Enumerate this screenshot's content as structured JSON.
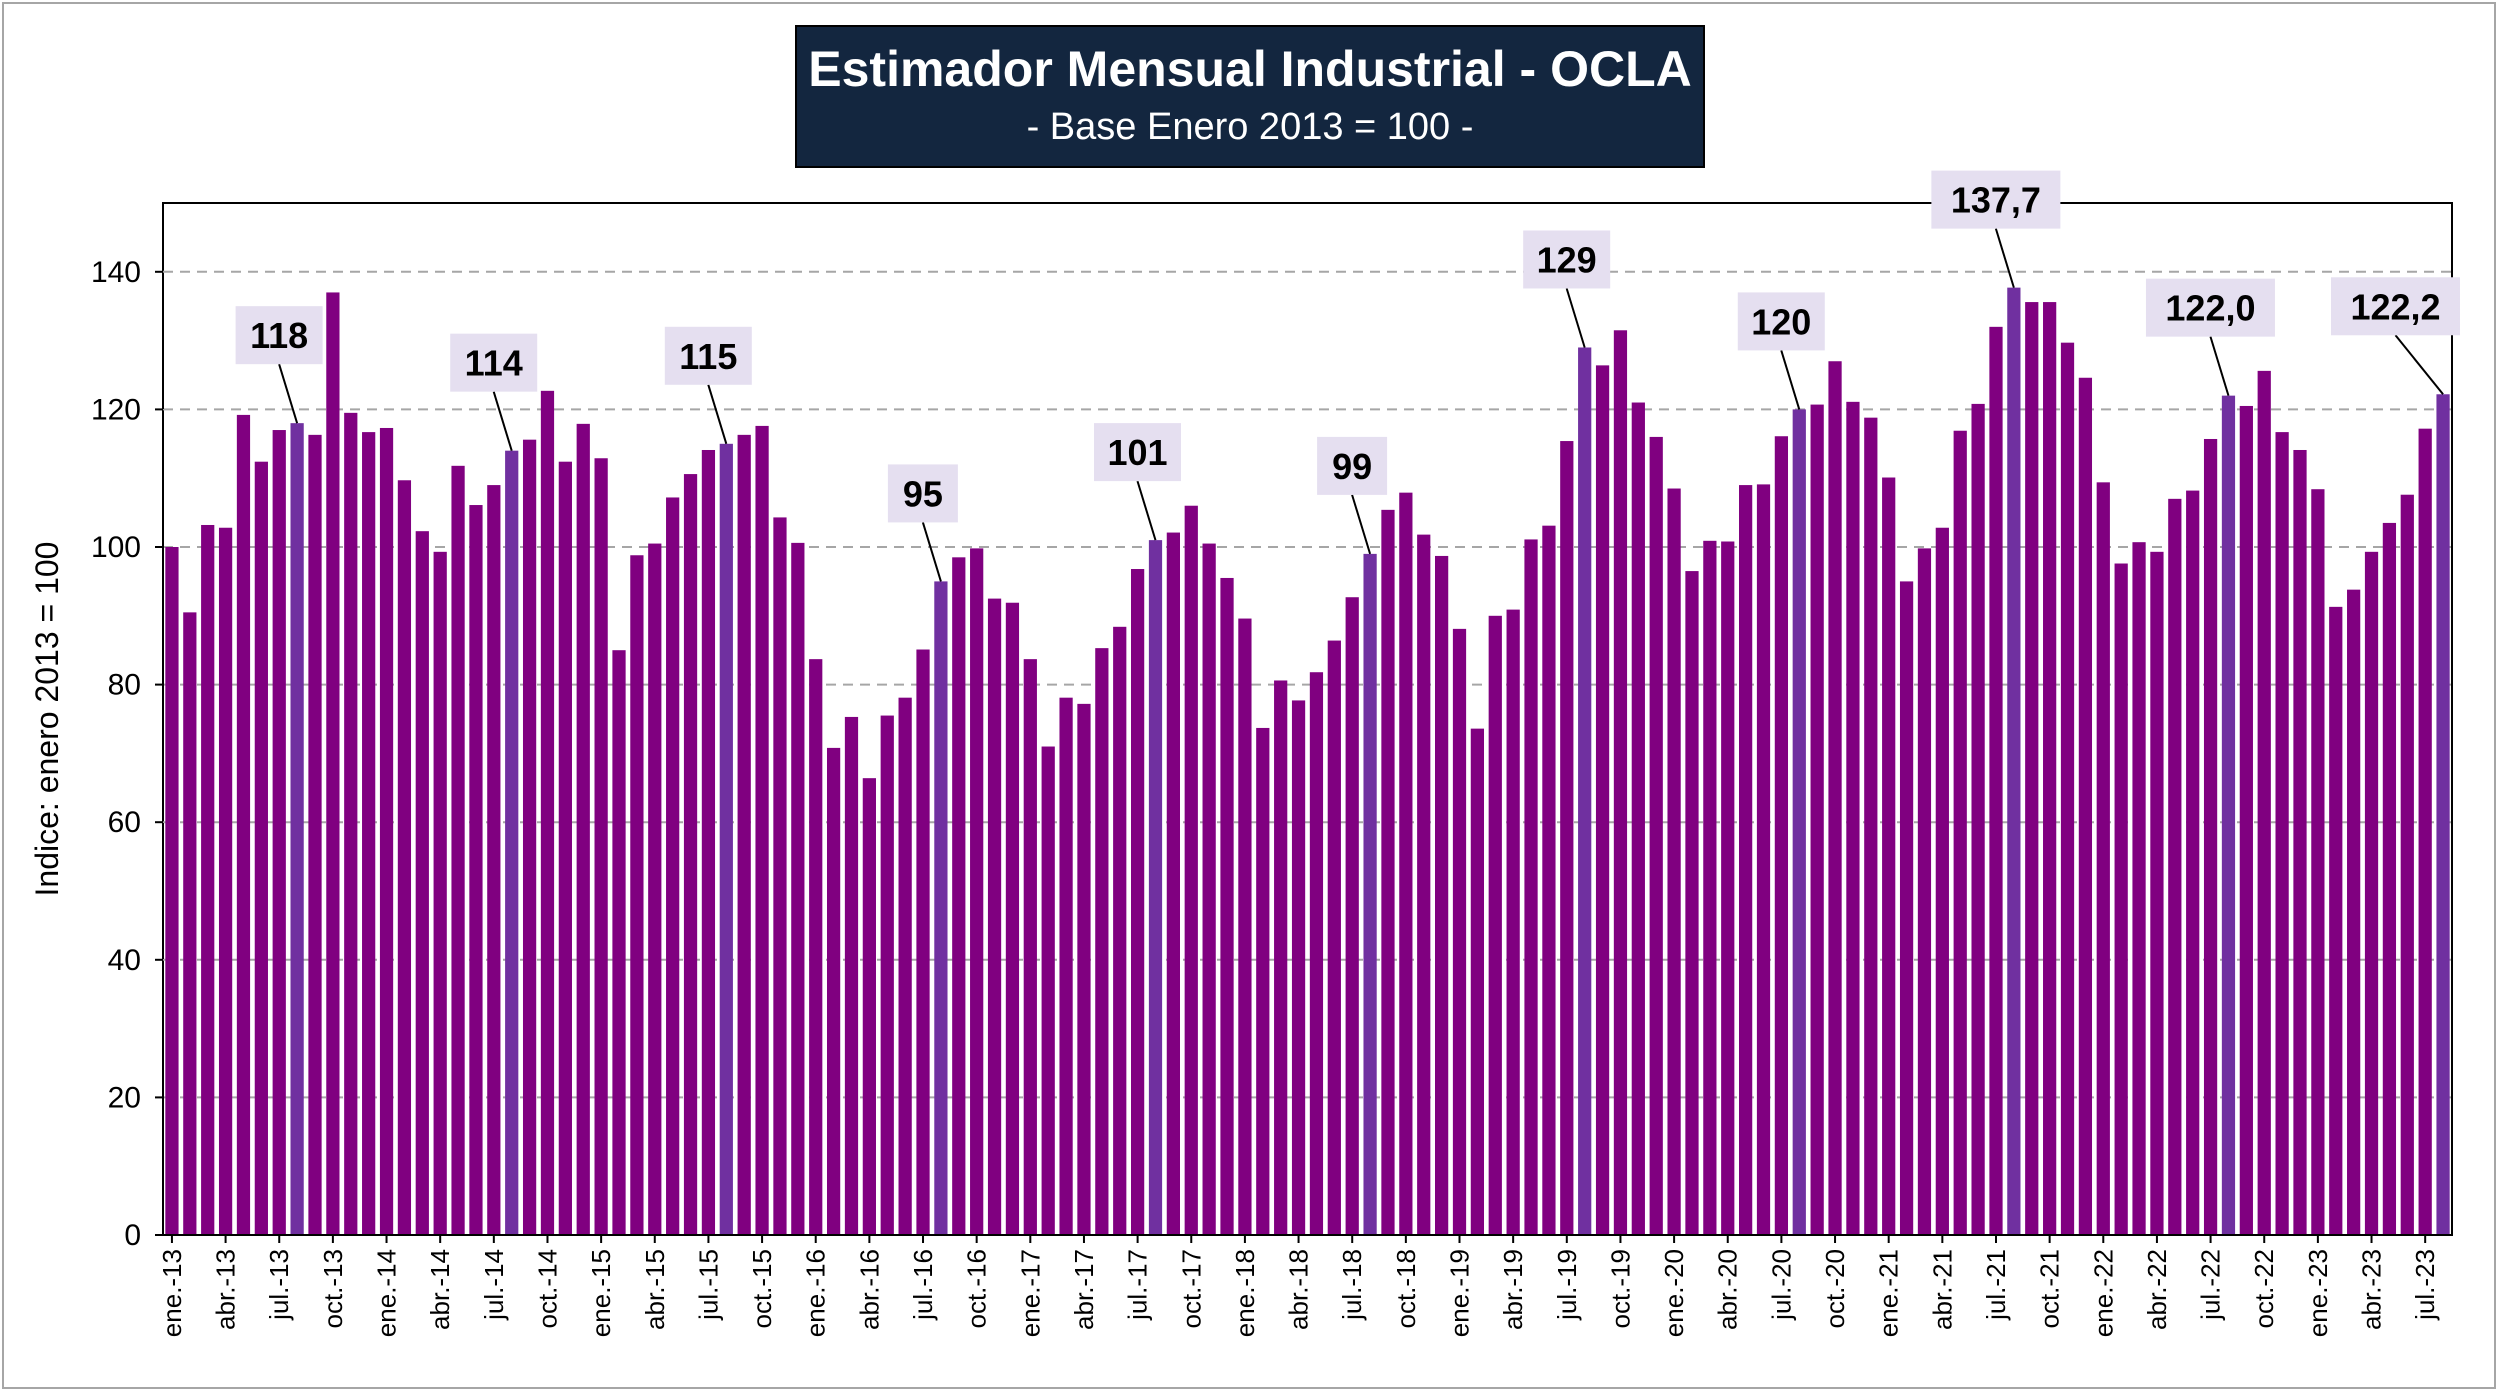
{
  "colors": {
    "bar": "#800080",
    "highlight": "#7030a0",
    "title_bg": "#13263f",
    "annotation_bg": "#e5dff0",
    "grid": "#a6a6a6"
  },
  "chart_data": {
    "type": "bar",
    "title": "Estimador Mensual Industrial - OCLA",
    "subtitle": "- Base Enero 2013 = 100 -",
    "xlabel": "",
    "ylabel": "Indice: enero 2013 = 100",
    "ylim": [
      0,
      150
    ],
    "yticks": [
      0,
      20,
      40,
      60,
      80,
      100,
      120,
      140
    ],
    "grid": true,
    "x_tick_labels": [
      "ene.-13",
      "abr.-13",
      "jul.-13",
      "oct.-13",
      "ene.-14",
      "abr.-14",
      "jul.-14",
      "oct.-14",
      "ene.-15",
      "abr.-15",
      "jul.-15",
      "oct.-15",
      "ene.-16",
      "abr.-16",
      "jul.-16",
      "oct.-16",
      "ene.-17",
      "abr.-17",
      "jul.-17",
      "oct.-17",
      "ene.-18",
      "abr.-18",
      "jul.-18",
      "oct.-18",
      "ene.-19",
      "abr.-19",
      "jul.-19",
      "oct.-19",
      "ene.-20",
      "abr.-20",
      "jul.-20",
      "oct.-20",
      "ene.-21",
      "abr.-21",
      "jul.-21",
      "oct.-21",
      "ene.-22",
      "abr.-22",
      "jul.-22",
      "oct.-22",
      "ene.-23",
      "abr.-23",
      "jul.-23"
    ],
    "values": [
      100,
      90.5,
      103.2,
      102.8,
      119.2,
      112.4,
      117,
      118,
      116.3,
      137,
      119.5,
      116.7,
      117.3,
      109.7,
      102.3,
      99.3,
      111.8,
      106.1,
      109,
      114,
      115.6,
      122.7,
      112.4,
      117.9,
      112.9,
      85,
      98.8,
      100.5,
      107.2,
      110.6,
      114.1,
      115,
      116.3,
      117.6,
      104.3,
      100.6,
      83.7,
      70.8,
      75.3,
      66.4,
      75.5,
      78.1,
      85.1,
      95,
      98.5,
      99.8,
      92.5,
      91.9,
      83.7,
      71,
      78.1,
      77.2,
      85.3,
      88.4,
      96.8,
      101,
      102.1,
      106,
      100.5,
      95.5,
      89.6,
      73.7,
      80.6,
      77.7,
      81.8,
      86.4,
      92.7,
      99,
      105.4,
      107.9,
      101.8,
      98.7,
      88.1,
      73.6,
      90,
      90.9,
      101.1,
      103.1,
      115.4,
      129,
      126.4,
      131.5,
      121,
      116,
      108.5,
      96.5,
      100.9,
      100.8,
      109,
      109.1,
      116.1,
      120,
      120.7,
      127,
      121.1,
      118.8,
      110.1,
      95,
      99.8,
      102.8,
      116.9,
      120.8,
      132,
      137.7,
      135.6,
      135.6,
      129.7,
      124.6,
      109.4,
      97.6,
      100.7,
      99.3,
      107,
      108.2,
      115.7,
      122,
      120.5,
      125.6,
      116.7,
      114.1,
      108.4,
      91.3,
      93.8,
      99.3,
      103.5,
      107.6,
      117.2,
      122.2
    ],
    "highlighted_indices": [
      7,
      19,
      31,
      43,
      55,
      67,
      79,
      91,
      103,
      115,
      127
    ],
    "annotations": [
      {
        "index": 7,
        "label": "118"
      },
      {
        "index": 19,
        "label": "114"
      },
      {
        "index": 31,
        "label": "115"
      },
      {
        "index": 43,
        "label": "95"
      },
      {
        "index": 55,
        "label": "101"
      },
      {
        "index": 67,
        "label": "99"
      },
      {
        "index": 79,
        "label": "129"
      },
      {
        "index": 91,
        "label": "120"
      },
      {
        "index": 103,
        "label": "137,7"
      },
      {
        "index": 115,
        "label": "122,0"
      },
      {
        "index": 127,
        "label": "122,2"
      }
    ]
  }
}
